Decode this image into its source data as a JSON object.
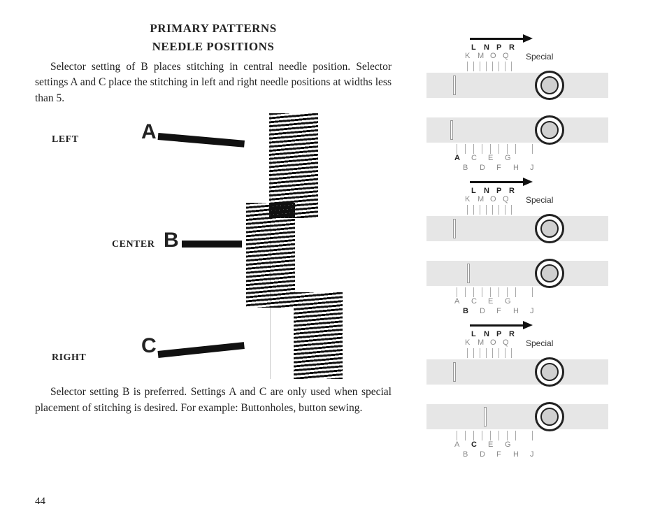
{
  "title": {
    "line1": "PRIMARY PATTERNS",
    "line2": "NEEDLE POSITIONS"
  },
  "para1": "Selector setting of B places stitching in central needle position. Selector settings A and C place the stitching in left and right needle positions at widths less than 5.",
  "para2": "Selector setting B is preferred. Settings A and C are only used when special placement of stitching is desired. For example: Buttonholes, button sew­ing.",
  "pageNumber": "44",
  "positions": {
    "left": {
      "label": "LEFT",
      "letter": "A"
    },
    "center": {
      "label": "CENTER",
      "letter": "B"
    },
    "right": {
      "label": "RIGHT",
      "letter": "C"
    }
  },
  "dialPanel": {
    "topLabels": [
      "L",
      "N",
      "P",
      "R"
    ],
    "topLabels2": [
      "K",
      "M",
      "O",
      "Q"
    ],
    "special": "Special",
    "bottomLabels1": [
      "A",
      "C",
      "E",
      "G"
    ],
    "bottomLabels2": [
      "B",
      "D",
      "F",
      "H",
      "J"
    ],
    "highlights": [
      "A",
      "B",
      "C"
    ]
  }
}
